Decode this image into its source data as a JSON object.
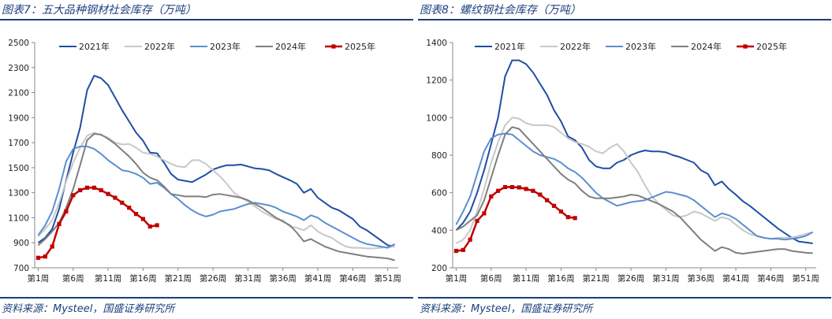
{
  "colors": {
    "title": "#1c3f7c",
    "s2021": "#1f4ea3",
    "s2022": "#c8c8c8",
    "s2023": "#5b8fd0",
    "s2024": "#7f7f7f",
    "s2025": "#c00000"
  },
  "panels": [
    {
      "title": "图表7：五大品种钢材社会库存（万吨）",
      "source": "资料来源：Mysteel，国盛证券研究所"
    },
    {
      "title": "图表8：螺纹钢社会库存（万吨）",
      "source": "资料来源：Mysteel，国盛证券研究所"
    }
  ],
  "chart_data": [
    {
      "type": "line",
      "title": "",
      "xlabel": "",
      "ylabel": "",
      "ylim": [
        700,
        2500
      ],
      "yticks": [
        "700",
        "900",
        "1100",
        "1300",
        "1500",
        "1700",
        "1900",
        "2100",
        "2300",
        "2500"
      ],
      "xticks": [
        "第1周",
        "第6周",
        "第11周",
        "第16周",
        "第21周",
        "第26周",
        "第31周",
        "第36周",
        "第41周",
        "第46周",
        "第51周"
      ],
      "legend_position": "top",
      "series": [
        {
          "name": "2021年",
          "marker": "none",
          "color": "#1f4ea3",
          "values": [
            900,
            940,
            1010,
            1170,
            1400,
            1620,
            1820,
            2120,
            2235,
            2215,
            2160,
            2060,
            1960,
            1870,
            1780,
            1715,
            1620,
            1615,
            1540,
            1450,
            1405,
            1395,
            1385,
            1415,
            1445,
            1485,
            1505,
            1520,
            1520,
            1525,
            1510,
            1495,
            1490,
            1480,
            1450,
            1425,
            1400,
            1370,
            1300,
            1330,
            1260,
            1220,
            1180,
            1160,
            1125,
            1090,
            1030,
            1000,
            960,
            920,
            880,
            870
          ]
        },
        {
          "name": "2022年",
          "marker": "none",
          "color": "#c8c8c8",
          "values": [
            950,
            1010,
            1080,
            1220,
            1390,
            1540,
            1660,
            1755,
            1780,
            1760,
            1740,
            1700,
            1685,
            1690,
            1660,
            1620,
            1610,
            1590,
            1560,
            1530,
            1510,
            1505,
            1560,
            1560,
            1530,
            1480,
            1430,
            1370,
            1300,
            1260,
            1230,
            1190,
            1150,
            1120,
            1090,
            1080,
            1030,
            1020,
            1000,
            1040,
            990,
            960,
            940,
            900,
            870,
            860,
            860,
            855,
            855,
            860,
            865,
            870
          ]
        },
        {
          "name": "2023年",
          "marker": "none",
          "color": "#5b8fd0",
          "values": [
            960,
            1040,
            1150,
            1330,
            1550,
            1650,
            1670,
            1670,
            1650,
            1610,
            1560,
            1520,
            1480,
            1470,
            1450,
            1420,
            1370,
            1380,
            1340,
            1290,
            1250,
            1200,
            1160,
            1130,
            1110,
            1125,
            1150,
            1160,
            1170,
            1190,
            1210,
            1220,
            1210,
            1200,
            1180,
            1150,
            1130,
            1110,
            1080,
            1120,
            1100,
            1060,
            1030,
            1000,
            970,
            940,
            910,
            890,
            880,
            870,
            860,
            890
          ]
        },
        {
          "name": "2024年",
          "marker": "none",
          "color": "#7f7f7f",
          "values": [
            880,
            930,
            990,
            1060,
            1180,
            1330,
            1520,
            1720,
            1770,
            1765,
            1730,
            1690,
            1640,
            1590,
            1530,
            1460,
            1420,
            1400,
            1350,
            1290,
            1280,
            1270,
            1270,
            1270,
            1265,
            1285,
            1290,
            1280,
            1270,
            1260,
            1240,
            1210,
            1180,
            1140,
            1100,
            1070,
            1040,
            980,
            910,
            930,
            900,
            870,
            850,
            830,
            820,
            810,
            800,
            790,
            785,
            780,
            775,
            760
          ]
        },
        {
          "name": "2025年",
          "marker": "square",
          "color": "#c00000",
          "values": [
            780,
            790,
            870,
            1050,
            1150,
            1280,
            1320,
            1340,
            1340,
            1320,
            1290,
            1260,
            1220,
            1180,
            1130,
            1090,
            1030,
            1040
          ]
        }
      ]
    },
    {
      "type": "line",
      "title": "",
      "xlabel": "",
      "ylabel": "",
      "ylim": [
        200,
        1400
      ],
      "yticks": [
        "200",
        "400",
        "600",
        "800",
        "1000",
        "1200",
        "1400"
      ],
      "xticks": [
        "第1周",
        "第6周",
        "第11周",
        "第16周",
        "第21周",
        "第26周",
        "第31周",
        "第36周",
        "第41周",
        "第46周",
        "第51周"
      ],
      "legend_position": "top",
      "series": [
        {
          "name": "2021年",
          "marker": "none",
          "color": "#1f4ea3",
          "values": [
            400,
            440,
            500,
            600,
            720,
            860,
            1000,
            1220,
            1305,
            1305,
            1285,
            1240,
            1180,
            1120,
            1040,
            980,
            900,
            880,
            840,
            775,
            740,
            730,
            730,
            760,
            775,
            800,
            815,
            825,
            820,
            820,
            815,
            800,
            790,
            775,
            760,
            720,
            700,
            640,
            660,
            620,
            590,
            555,
            530,
            500,
            470,
            440,
            410,
            385,
            360,
            340,
            335,
            330
          ]
        },
        {
          "name": "2022年",
          "marker": "none",
          "color": "#c8c8c8",
          "values": [
            330,
            350,
            400,
            500,
            620,
            760,
            870,
            960,
            1000,
            995,
            970,
            960,
            960,
            960,
            950,
            920,
            890,
            870,
            860,
            845,
            820,
            810,
            840,
            860,
            820,
            760,
            710,
            640,
            580,
            540,
            510,
            480,
            470,
            480,
            500,
            490,
            470,
            450,
            470,
            460,
            430,
            400,
            380,
            370,
            360,
            355,
            360,
            360,
            360,
            370,
            380,
            390
          ]
        },
        {
          "name": "2023年",
          "marker": "none",
          "color": "#5b8fd0",
          "values": [
            430,
            500,
            580,
            700,
            820,
            890,
            910,
            915,
            910,
            880,
            850,
            820,
            800,
            790,
            780,
            760,
            730,
            710,
            680,
            640,
            600,
            570,
            550,
            530,
            540,
            550,
            555,
            560,
            575,
            590,
            605,
            600,
            590,
            580,
            560,
            530,
            500,
            470,
            490,
            480,
            460,
            430,
            400,
            370,
            360,
            355,
            355,
            350,
            355,
            360,
            370,
            390
          ]
        },
        {
          "name": "2024年",
          "marker": "none",
          "color": "#7f7f7f",
          "values": [
            400,
            420,
            450,
            480,
            560,
            680,
            800,
            910,
            950,
            940,
            900,
            860,
            820,
            780,
            740,
            700,
            670,
            650,
            610,
            580,
            570,
            570,
            570,
            575,
            580,
            590,
            585,
            570,
            555,
            540,
            520,
            500,
            470,
            430,
            390,
            350,
            320,
            290,
            310,
            300,
            280,
            275,
            280,
            285,
            290,
            295,
            300,
            300,
            290,
            285,
            280,
            278
          ]
        },
        {
          "name": "2025年",
          "marker": "square",
          "color": "#c00000",
          "values": [
            290,
            295,
            350,
            450,
            490,
            580,
            610,
            630,
            630,
            628,
            620,
            610,
            590,
            560,
            530,
            500,
            470,
            465
          ]
        }
      ]
    }
  ]
}
